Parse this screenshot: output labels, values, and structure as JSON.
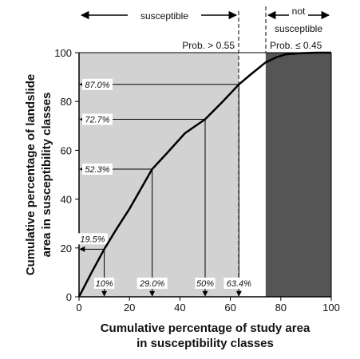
{
  "chart_data": {
    "type": "line",
    "xlabel": [
      "Cumulative percentage of study area",
      "in susceptibility classes"
    ],
    "ylabel": [
      "Cumulative percentage of landslide",
      "area in susceptibility classes"
    ],
    "xlim": [
      0,
      100
    ],
    "ylim": [
      0,
      100
    ],
    "xticks": [
      "0",
      "20",
      "40",
      "60",
      "80",
      "100"
    ],
    "yticks": [
      "0",
      "20",
      "40",
      "60",
      "80",
      "100"
    ],
    "grid": false,
    "series": [
      {
        "x": [
          0,
          5,
          10,
          15,
          20,
          29,
          35,
          42,
          50,
          57,
          63.4,
          68,
          74,
          78,
          82,
          88,
          94,
          100
        ],
        "y": [
          0,
          10,
          19.5,
          28,
          36,
          52.3,
          59,
          67,
          72.7,
          80,
          87,
          91,
          96,
          98,
          99.3,
          99.8,
          100,
          100
        ]
      }
    ],
    "regions": [
      {
        "name": "susceptible",
        "x": [
          0,
          63.4
        ],
        "condition": "Prob. > 0.55",
        "shade": "#d2d2d2"
      },
      {
        "name": "not susceptible",
        "x": [
          74,
          100
        ],
        "condition": "Prob. ≤ 0.45",
        "shade": "#555555"
      }
    ],
    "region_labels": {
      "susceptible": "susceptible",
      "not_susceptible_line1": "not",
      "not_susceptible_line2": "susceptible",
      "prob_high": "Prob. > 0.55",
      "prob_low": "Prob. ≤ 0.45"
    },
    "y_callouts": [
      {
        "label": "87.0%",
        "y": 87.0,
        "x_end": 63.4
      },
      {
        "label": "72.7%",
        "y": 72.7,
        "x_end": 50
      },
      {
        "label": "52.3%",
        "y": 52.3,
        "x_end": 29
      },
      {
        "label": "19.5%",
        "y": 19.5,
        "x_end": 10
      }
    ],
    "x_callouts": [
      {
        "label": "10%",
        "x": 10,
        "y_top": 19.5
      },
      {
        "label": "29.0%",
        "x": 29,
        "y_top": 52.3
      },
      {
        "label": "50%",
        "x": 50,
        "y_top": 72.7
      },
      {
        "label": "63.4%",
        "x": 63.4,
        "y_top": 87.0
      }
    ],
    "colors": {
      "susceptible_fill": "#d2d2d2",
      "not_susceptible_fill": "#555555",
      "line": "#000000"
    }
  }
}
